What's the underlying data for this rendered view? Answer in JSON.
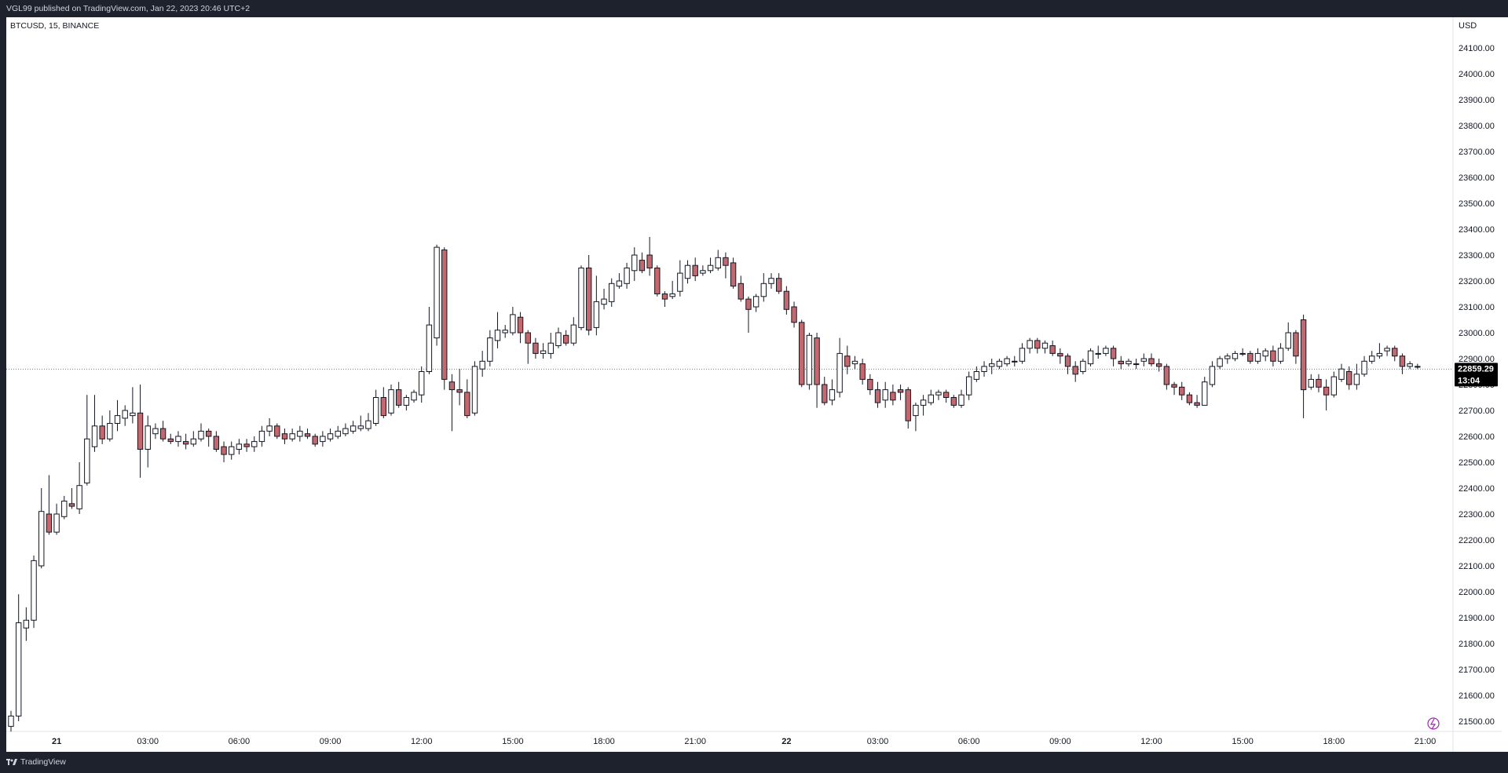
{
  "header": {
    "published_text": "VGL99 published on TradingView.com, Jan 22, 2023 20:46 UTC+2"
  },
  "symbol_info": "BTCUSD, 15, BINANCE",
  "footer": {
    "brand": "TradingView"
  },
  "colors": {
    "up_body": "#ffffff",
    "down_body": "#c4686f",
    "wick": "#131722",
    "background": "#ffffff",
    "frame": "#1e222d",
    "price_line": "#787b86",
    "price_label_bg": "#000000"
  },
  "chart_data": {
    "type": "candlestick",
    "price_axis_unit": "USD",
    "ylim": [
      21450,
      24200
    ],
    "y_ticks": [
      "24100.00",
      "24000.00",
      "23900.00",
      "23800.00",
      "23700.00",
      "23600.00",
      "23500.00",
      "23400.00",
      "23300.00",
      "23200.00",
      "23100.00",
      "23000.00",
      "22900.00",
      "22800.00",
      "22700.00",
      "22600.00",
      "22500.00",
      "22400.00",
      "22300.00",
      "22200.00",
      "22100.00",
      "22000.00",
      "21900.00",
      "21800.00",
      "21700.00",
      "21600.00",
      "21500.00"
    ],
    "x_ticks": [
      {
        "label": "21",
        "bold": true,
        "index": 6
      },
      {
        "label": "03:00",
        "index": 18
      },
      {
        "label": "06:00",
        "index": 30
      },
      {
        "label": "09:00",
        "index": 42
      },
      {
        "label": "12:00",
        "index": 54
      },
      {
        "label": "15:00",
        "index": 66
      },
      {
        "label": "18:00",
        "index": 78
      },
      {
        "label": "21:00",
        "index": 90
      },
      {
        "label": "22",
        "bold": true,
        "index": 102
      },
      {
        "label": "03:00",
        "index": 114
      },
      {
        "label": "06:00",
        "index": 126
      },
      {
        "label": "09:00",
        "index": 138
      },
      {
        "label": "12:00",
        "index": 150
      },
      {
        "label": "15:00",
        "index": 162
      },
      {
        "label": "18:00",
        "index": 174
      },
      {
        "label": "21:00",
        "index": 186
      }
    ],
    "current_price": {
      "value": "22859.29",
      "countdown": "13:04",
      "price": 22859.29
    },
    "candles": [
      [
        21480,
        21520,
        21460,
        21540
      ],
      [
        21520,
        21880,
        21500,
        21990
      ],
      [
        21860,
        21890,
        21810,
        21940
      ],
      [
        21890,
        22120,
        21860,
        22140
      ],
      [
        22100,
        22310,
        22090,
        22400
      ],
      [
        22300,
        22230,
        22220,
        22450
      ],
      [
        22230,
        22300,
        22220,
        22340
      ],
      [
        22290,
        22350,
        22280,
        22370
      ],
      [
        22340,
        22330,
        22320,
        22400
      ],
      [
        22320,
        22410,
        22300,
        22500
      ],
      [
        22420,
        22590,
        22410,
        22760
      ],
      [
        22560,
        22640,
        22540,
        22760
      ],
      [
        22640,
        22590,
        22570,
        22680
      ],
      [
        22590,
        22650,
        22580,
        22700
      ],
      [
        22650,
        22680,
        22620,
        22740
      ],
      [
        22670,
        22700,
        22640,
        22720
      ],
      [
        22680,
        22690,
        22650,
        22790
      ],
      [
        22690,
        22550,
        22440,
        22800
      ],
      [
        22550,
        22640,
        22480,
        22680
      ],
      [
        22610,
        22630,
        22590,
        22650
      ],
      [
        22630,
        22590,
        22580,
        22660
      ],
      [
        22590,
        22580,
        22570,
        22610
      ],
      [
        22580,
        22600,
        22560,
        22620
      ],
      [
        22580,
        22570,
        22550,
        22610
      ],
      [
        22570,
        22590,
        22560,
        22620
      ],
      [
        22590,
        22620,
        22580,
        22650
      ],
      [
        22620,
        22600,
        22560,
        22630
      ],
      [
        22600,
        22550,
        22540,
        22620
      ],
      [
        22560,
        22530,
        22500,
        22580
      ],
      [
        22530,
        22560,
        22510,
        22580
      ],
      [
        22550,
        22570,
        22530,
        22590
      ],
      [
        22570,
        22560,
        22540,
        22590
      ],
      [
        22560,
        22580,
        22540,
        22600
      ],
      [
        22580,
        22620,
        22560,
        22640
      ],
      [
        22620,
        22640,
        22600,
        22670
      ],
      [
        22640,
        22600,
        22590,
        22650
      ],
      [
        22610,
        22590,
        22570,
        22630
      ],
      [
        22590,
        22610,
        22580,
        22630
      ],
      [
        22600,
        22620,
        22580,
        22640
      ],
      [
        22610,
        22600,
        22590,
        22630
      ],
      [
        22600,
        22570,
        22560,
        22610
      ],
      [
        22580,
        22600,
        22560,
        22620
      ],
      [
        22590,
        22610,
        22580,
        22630
      ],
      [
        22600,
        22620,
        22590,
        22640
      ],
      [
        22610,
        22630,
        22600,
        22650
      ],
      [
        22620,
        22640,
        22610,
        22660
      ],
      [
        22630,
        22640,
        22620,
        22680
      ],
      [
        22630,
        22660,
        22620,
        22690
      ],
      [
        22650,
        22750,
        22640,
        22780
      ],
      [
        22750,
        22680,
        22670,
        22790
      ],
      [
        22690,
        22780,
        22680,
        22800
      ],
      [
        22780,
        22720,
        22710,
        22810
      ],
      [
        22720,
        22750,
        22700,
        22760
      ],
      [
        22740,
        22770,
        22730,
        22780
      ],
      [
        22760,
        22850,
        22730,
        22870
      ],
      [
        22850,
        23030,
        22840,
        23100
      ],
      [
        22980,
        23330,
        22950,
        23340
      ],
      [
        23320,
        22820,
        22780,
        23330
      ],
      [
        22810,
        22780,
        22620,
        22840
      ],
      [
        22780,
        22770,
        22720,
        22860
      ],
      [
        22770,
        22680,
        22670,
        22820
      ],
      [
        22690,
        22870,
        22680,
        22890
      ],
      [
        22860,
        22890,
        22830,
        22930
      ],
      [
        22890,
        22980,
        22870,
        23010
      ],
      [
        22970,
        23010,
        22940,
        23080
      ],
      [
        23000,
        23010,
        22980,
        23030
      ],
      [
        23000,
        23070,
        22990,
        23100
      ],
      [
        23060,
        23000,
        22960,
        23080
      ],
      [
        23000,
        22960,
        22880,
        23010
      ],
      [
        22960,
        22920,
        22900,
        22980
      ],
      [
        22920,
        22930,
        22900,
        22960
      ],
      [
        22920,
        22960,
        22900,
        23000
      ],
      [
        22950,
        23000,
        22940,
        23020
      ],
      [
        22990,
        22960,
        22950,
        23010
      ],
      [
        22960,
        23030,
        22950,
        23060
      ],
      [
        23020,
        23250,
        23010,
        23260
      ],
      [
        23250,
        23010,
        22990,
        23300
      ],
      [
        23020,
        23120,
        22990,
        23220
      ],
      [
        23110,
        23130,
        23090,
        23170
      ],
      [
        23120,
        23190,
        23100,
        23210
      ],
      [
        23180,
        23200,
        23170,
        23230
      ],
      [
        23190,
        23250,
        23170,
        23270
      ],
      [
        23240,
        23300,
        23200,
        23330
      ],
      [
        23280,
        23240,
        23230,
        23310
      ],
      [
        23300,
        23250,
        23220,
        23370
      ],
      [
        23250,
        23150,
        23140,
        23260
      ],
      [
        23150,
        23130,
        23100,
        23160
      ],
      [
        23140,
        23150,
        23130,
        23200
      ],
      [
        23160,
        23230,
        23140,
        23280
      ],
      [
        23210,
        23260,
        23190,
        23280
      ],
      [
        23260,
        23220,
        23200,
        23290
      ],
      [
        23230,
        23240,
        23220,
        23260
      ],
      [
        23240,
        23260,
        23230,
        23290
      ],
      [
        23250,
        23290,
        23240,
        23320
      ],
      [
        23290,
        23260,
        23210,
        23310
      ],
      [
        23270,
        23180,
        23170,
        23290
      ],
      [
        23190,
        23130,
        23120,
        23220
      ],
      [
        23130,
        23090,
        23000,
        23140
      ],
      [
        23100,
        23140,
        23080,
        23150
      ],
      [
        23140,
        23190,
        23120,
        23230
      ],
      [
        23190,
        23210,
        23170,
        23230
      ],
      [
        23210,
        23160,
        23150,
        23230
      ],
      [
        23160,
        23090,
        23070,
        23180
      ],
      [
        23100,
        23040,
        23020,
        23120
      ],
      [
        23040,
        22800,
        22790,
        23050
      ],
      [
        22800,
        22990,
        22780,
        23000
      ],
      [
        22980,
        22800,
        22710,
        23000
      ],
      [
        22800,
        22730,
        22720,
        22830
      ],
      [
        22740,
        22780,
        22720,
        22820
      ],
      [
        22770,
        22920,
        22750,
        22980
      ],
      [
        22910,
        22870,
        22840,
        22950
      ],
      [
        22880,
        22890,
        22860,
        22910
      ],
      [
        22880,
        22820,
        22800,
        22900
      ],
      [
        22820,
        22780,
        22760,
        22840
      ],
      [
        22780,
        22730,
        22710,
        22810
      ],
      [
        22740,
        22780,
        22710,
        22810
      ],
      [
        22770,
        22740,
        22720,
        22800
      ],
      [
        22780,
        22770,
        22740,
        22800
      ],
      [
        22780,
        22660,
        22630,
        22790
      ],
      [
        22680,
        22720,
        22620,
        22730
      ],
      [
        22720,
        22740,
        22680,
        22760
      ],
      [
        22730,
        22760,
        22720,
        22780
      ],
      [
        22760,
        22770,
        22740,
        22780
      ],
      [
        22770,
        22750,
        22730,
        22780
      ],
      [
        22750,
        22720,
        22710,
        22760
      ],
      [
        22720,
        22760,
        22710,
        22780
      ],
      [
        22760,
        22830,
        22740,
        22850
      ],
      [
        22820,
        22850,
        22810,
        22870
      ],
      [
        22850,
        22870,
        22830,
        22890
      ],
      [
        22870,
        22880,
        22840,
        22900
      ],
      [
        22870,
        22890,
        22860,
        22900
      ],
      [
        22880,
        22900,
        22870,
        22910
      ],
      [
        22890,
        22890,
        22870,
        22910
      ],
      [
        22890,
        22940,
        22880,
        22960
      ],
      [
        22940,
        22970,
        22920,
        22980
      ],
      [
        22970,
        22940,
        22920,
        22980
      ],
      [
        22940,
        22960,
        22920,
        22970
      ],
      [
        22950,
        22920,
        22910,
        22970
      ],
      [
        22920,
        22910,
        22880,
        22940
      ],
      [
        22910,
        22870,
        22840,
        22920
      ],
      [
        22870,
        22840,
        22810,
        22890
      ],
      [
        22850,
        22890,
        22840,
        22900
      ],
      [
        22880,
        22930,
        22870,
        22940
      ],
      [
        22920,
        22920,
        22900,
        22950
      ],
      [
        22920,
        22940,
        22910,
        22950
      ],
      [
        22940,
        22900,
        22870,
        22950
      ],
      [
        22890,
        22880,
        22860,
        22910
      ],
      [
        22880,
        22890,
        22870,
        22900
      ],
      [
        22880,
        22880,
        22860,
        22900
      ],
      [
        22890,
        22900,
        22870,
        22920
      ],
      [
        22900,
        22880,
        22870,
        22920
      ],
      [
        22880,
        22870,
        22850,
        22900
      ],
      [
        22870,
        22800,
        22780,
        22880
      ],
      [
        22800,
        22790,
        22760,
        22810
      ],
      [
        22790,
        22760,
        22740,
        22810
      ],
      [
        22760,
        22730,
        22720,
        22770
      ],
      [
        22730,
        22720,
        22710,
        22760
      ],
      [
        22720,
        22810,
        22720,
        22830
      ],
      [
        22800,
        22870,
        22790,
        22890
      ],
      [
        22870,
        22900,
        22860,
        22910
      ],
      [
        22900,
        22910,
        22880,
        22920
      ],
      [
        22900,
        22920,
        22890,
        22930
      ],
      [
        22920,
        22920,
        22910,
        22940
      ],
      [
        22920,
        22890,
        22880,
        22930
      ],
      [
        22890,
        22920,
        22880,
        22940
      ],
      [
        22910,
        22930,
        22890,
        22940
      ],
      [
        22930,
        22890,
        22870,
        22950
      ],
      [
        22890,
        22940,
        22880,
        22960
      ],
      [
        22940,
        23000,
        22930,
        23040
      ],
      [
        23000,
        22910,
        22880,
        23010
      ],
      [
        23050,
        22780,
        22670,
        23070
      ],
      [
        22790,
        22820,
        22780,
        22840
      ],
      [
        22820,
        22790,
        22770,
        22840
      ],
      [
        22790,
        22760,
        22700,
        22820
      ],
      [
        22760,
        22830,
        22750,
        22850
      ],
      [
        22820,
        22860,
        22810,
        22880
      ],
      [
        22850,
        22800,
        22780,
        22870
      ],
      [
        22800,
        22840,
        22780,
        22880
      ],
      [
        22840,
        22890,
        22830,
        22910
      ],
      [
        22890,
        22910,
        22880,
        22930
      ],
      [
        22910,
        22920,
        22900,
        22960
      ],
      [
        22930,
        22940,
        22910,
        22950
      ],
      [
        22940,
        22910,
        22890,
        22950
      ],
      [
        22910,
        22870,
        22840,
        22920
      ],
      [
        22870,
        22880,
        22860,
        22890
      ],
      [
        22870,
        22870,
        22860,
        22880
      ]
    ]
  }
}
